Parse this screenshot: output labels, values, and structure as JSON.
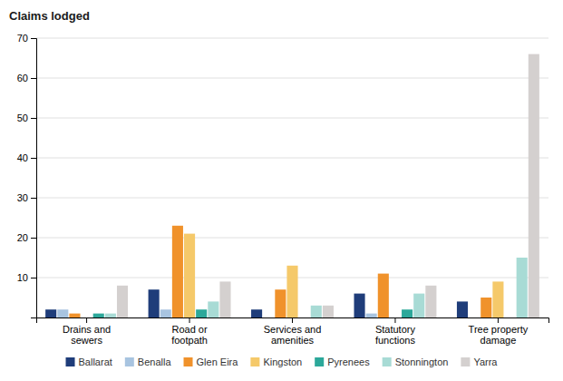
{
  "chart_data": {
    "type": "bar",
    "ylabel": "Claims lodged",
    "categories": [
      "Drains and\nsewers",
      "Road or\nfootpath",
      "Services and\namenities",
      "Statutory\nfunctions",
      "Tree property\ndamage"
    ],
    "series": [
      {
        "name": "Ballarat",
        "color": "#1f3d7a",
        "values": [
          2,
          7,
          2,
          6,
          4
        ]
      },
      {
        "name": "Benalla",
        "color": "#a8c4e0",
        "values": [
          2,
          2,
          0,
          1,
          0
        ]
      },
      {
        "name": "Glen Eira",
        "color": "#f0922b",
        "values": [
          1,
          23,
          7,
          11,
          5
        ]
      },
      {
        "name": "Kingston",
        "color": "#f5c96a",
        "values": [
          0,
          21,
          13,
          0,
          9
        ]
      },
      {
        "name": "Pyrenees",
        "color": "#2ca89a",
        "values": [
          1,
          2,
          0,
          2,
          0
        ]
      },
      {
        "name": "Stonnington",
        "color": "#a8dbd5",
        "values": [
          1,
          4,
          3,
          6,
          15
        ]
      },
      {
        "name": "Yarra",
        "color": "#d4d0cf",
        "values": [
          8,
          9,
          3,
          8,
          66
        ]
      }
    ],
    "ylim": [
      0,
      70
    ],
    "yticks": [
      10,
      20,
      30,
      40,
      50,
      60,
      70
    ],
    "grid": true,
    "legend": "bottom"
  }
}
